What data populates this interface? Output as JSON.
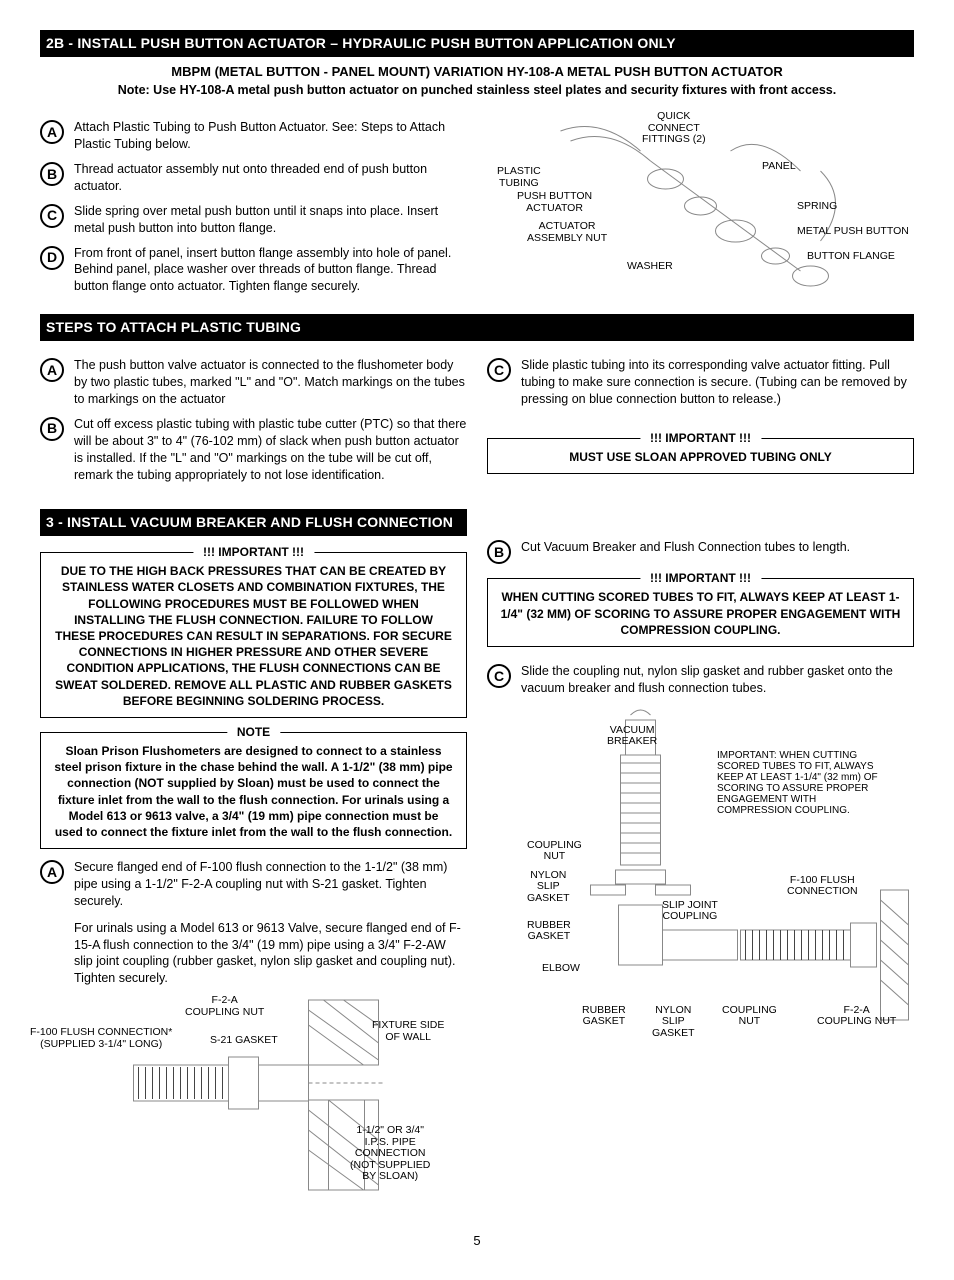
{
  "page_number": "5",
  "section_2b": {
    "header": "2B - INSTALL PUSH BUTTON ACTUATOR – HYDRAULIC PUSH BUTTON APPLICATION ONLY",
    "sub_header": "MBPM (METAL BUTTON - PANEL MOUNT) VARIATION HY-108-A METAL PUSH BUTTON ACTUATOR",
    "sub_note": "Note: Use HY-108-A metal push button actuator on punched stainless steel plates and security fixtures with front access.",
    "steps": {
      "A": "Attach Plastic Tubing to Push Button Actuator. See: Steps to Attach Plastic Tubing below.",
      "B": "Thread actuator assembly nut onto threaded end of push button actuator.",
      "C": "Slide spring over metal push button until it snaps into place. Insert metal push button into button flange.",
      "D": "From front of panel, insert button flange assembly into hole of panel. Behind panel, place washer over threads of button flange. Thread button flange onto actuator. Tighten flange securely."
    },
    "diagram_labels": {
      "plastic_tubing": "PLASTIC\nTUBING",
      "quick_connect": "QUICK\nCONNECT\nFITTINGS (2)",
      "push_button_actuator": "PUSH BUTTON\nACTUATOR",
      "actuator_assembly_nut": "ACTUATOR\nASSEMBLY NUT",
      "washer": "WASHER",
      "panel": "PANEL",
      "spring": "SPRING",
      "metal_push_button": "METAL PUSH BUTTON",
      "button_flange": "BUTTON FLANGE"
    }
  },
  "section_tubing": {
    "header": "STEPS TO ATTACH PLASTIC TUBING",
    "steps_left": {
      "A": "The push button valve actuator is connected to the flushometer body by two plastic tubes, marked \"L\" and \"O\". Match markings on the tubes to markings on the actuator",
      "B": "Cut off excess plastic tubing with plastic tube cutter (PTC) so that there will be about 3\" to 4\" (76-102 mm) of slack when push button actuator is installed. If the \"L\" and \"O\" markings on the tube will be cut off, remark the tubing appropriately to not lose identification."
    },
    "steps_right": {
      "C": "Slide plastic tubing into its corresponding valve actuator fitting. Pull tubing to make sure connection is secure. (Tubing can be removed by pressing on blue connection button to release.)"
    },
    "important_legend": "!!! IMPORTANT !!!",
    "important_text": "MUST USE SLOAN APPROVED TUBING ONLY"
  },
  "section_3": {
    "header": "3 - INSTALL VACUUM BREAKER AND FLUSH CONNECTION",
    "important_legend": "!!! IMPORTANT !!!",
    "important_text": "DUE TO THE HIGH BACK PRESSURES THAT CAN BE CREATED BY STAINLESS WATER CLOSETS AND COMBINATION FIXTURES, THE FOLLOWING PROCEDURES MUST BE FOLLOWED WHEN INSTALLING THE FLUSH CONNECTION. FAILURE TO FOLLOW THESE PROCEDURES CAN RESULT IN SEPARATIONS. FOR SECURE CONNECTIONS IN HIGHER PRESSURE AND OTHER SEVERE CONDITION APPLICATIONS, THE FLUSH CONNECTIONS CAN BE SWEAT SOLDERED. REMOVE ALL PLASTIC AND RUBBER GASKETS BEFORE BEGINNING SOLDERING PROCESS.",
    "note_legend": "NOTE",
    "note_text": "Sloan Prison Flushometers are designed to connect to a stainless steel prison fixture in the chase behind the wall. A 1-1/2\" (38 mm) pipe connection (NOT supplied by Sloan) must be used to connect the fixture inlet from the wall to the flush connection. For urinals using a Model 613 or 9613 valve, a 3/4\" (19 mm) pipe connection must be used to connect the fixture inlet from the wall to the flush connection.",
    "steps_left": {
      "A_p1": "Secure flanged end of F-100 flush connection to the 1-1/2\" (38 mm) pipe using a 1-1/2\" F-2-A coupling nut with S-21 gasket. Tighten securely.",
      "A_p2": "For urinals using a Model 613 or 9613 Valve, secure flanged end of F-15-A flush connection to the 3/4\" (19 mm) pipe using a 3/4\" F-2-AW slip joint coupling (rubber gasket, nylon slip gasket and coupling nut). Tighten securely."
    },
    "diagram_left_labels": {
      "f2a_coupling_nut": "F-2-A\nCOUPLING NUT",
      "f100_flush_connection": "F-100 FLUSH CONNECTION*\n(SUPPLIED 3-1/4\" LONG)",
      "s21_gasket": "S-21 GASKET",
      "fixture_side": "FIXTURE SIDE\nOF WALL",
      "pipe_connection": "1-1/2\" OR 3/4\"\nI.P.S. PIPE\nCONNECTION\n(NOT SUPPLIED\nBY SLOAN)"
    },
    "steps_right": {
      "B": "Cut Vacuum Breaker and Flush Connection tubes to length.",
      "C": "Slide the coupling nut, nylon slip gasket and rubber gasket onto the vacuum breaker and flush connection tubes."
    },
    "important2_legend": "!!! IMPORTANT !!!",
    "important2_text": "WHEN CUTTING SCORED TUBES TO FIT, ALWAYS KEEP AT LEAST 1-1/4\" (32 MM) OF SCORING TO ASSURE PROPER ENGAGEMENT WITH COMPRESSION COUPLING.",
    "diagram_right_labels": {
      "vacuum_breaker": "VACUUM\nBREAKER",
      "coupling_nut_top": "COUPLING\nNUT",
      "nylon_slip_gasket_top": "NYLON\nSLIP\nGASKET",
      "rubber_gasket_top": "RUBBER\nGASKET",
      "elbow": "ELBOW",
      "slip_joint_coupling": "SLIP JOINT\nCOUPLING",
      "rubber_gasket_bot": "RUBBER\nGASKET",
      "nylon_slip_gasket_bot": "NYLON\nSLIP\nGASKET",
      "coupling_nut_bot": "COUPLING\nNUT",
      "f2a_coupling_nut_bot": "F-2-A\nCOUPLING NUT",
      "f100_flush": "F-100 FLUSH\nCONNECTION",
      "scoring_note": "IMPORTANT: WHEN CUTTING SCORED TUBES TO FIT, ALWAYS KEEP AT LEAST 1-1/4\" (32 mm) OF SCORING TO ASSURE PROPER ENGAGEMENT WITH COMPRESSION COUPLING."
    }
  }
}
